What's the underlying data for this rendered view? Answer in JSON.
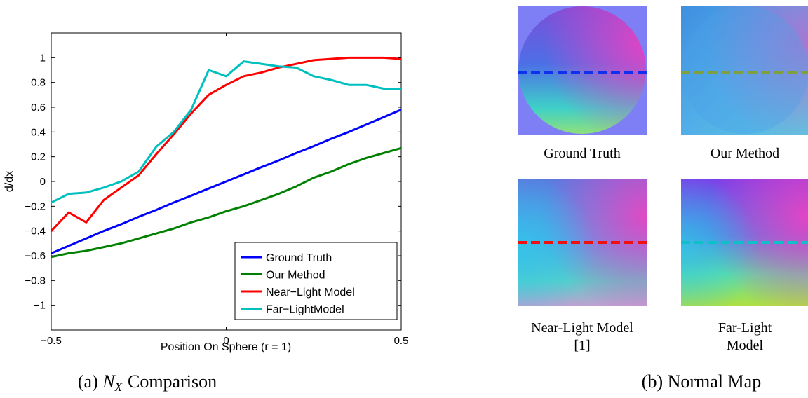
{
  "chart_data": {
    "type": "line",
    "xlabel": "Position On Sphere (r = 1)",
    "ylabel": "d/dx",
    "x": [
      -0.5,
      -0.45,
      -0.4,
      -0.35,
      -0.3,
      -0.25,
      -0.2,
      -0.15,
      -0.1,
      -0.05,
      0,
      0.05,
      0.1,
      0.15,
      0.2,
      0.25,
      0.3,
      0.35,
      0.4,
      0.45,
      0.5
    ],
    "series": [
      {
        "name": "Ground Truth",
        "color": "#0000ff",
        "values": [
          -0.58,
          -0.52,
          -0.46,
          -0.4,
          -0.345,
          -0.285,
          -0.23,
          -0.17,
          -0.115,
          -0.057,
          0,
          0.057,
          0.115,
          0.17,
          0.23,
          0.285,
          0.345,
          0.4,
          0.46,
          0.52,
          0.58
        ]
      },
      {
        "name": "Our Method",
        "color": "#008000",
        "values": [
          -0.61,
          -0.58,
          -0.56,
          -0.53,
          -0.5,
          -0.46,
          -0.42,
          -0.38,
          -0.33,
          -0.29,
          -0.24,
          -0.2,
          -0.15,
          -0.1,
          -0.04,
          0.03,
          0.08,
          0.14,
          0.19,
          0.23,
          0.27
        ]
      },
      {
        "name": "Near−Light Model",
        "color": "#ff0000",
        "values": [
          -0.4,
          -0.25,
          -0.33,
          -0.15,
          -0.05,
          0.05,
          0.22,
          0.38,
          0.55,
          0.7,
          0.78,
          0.85,
          0.88,
          0.92,
          0.95,
          0.98,
          0.99,
          1.0,
          1.0,
          1.0,
          0.99
        ]
      },
      {
        "name": "Far−LightModel",
        "color": "#00bfbf",
        "values": [
          -0.17,
          -0.1,
          -0.09,
          -0.05,
          0.0,
          0.08,
          0.28,
          0.4,
          0.58,
          0.9,
          0.85,
          0.97,
          0.95,
          0.93,
          0.92,
          0.85,
          0.82,
          0.78,
          0.78,
          0.75,
          0.75
        ]
      }
    ],
    "xlim": [
      -0.5,
      0.5
    ],
    "xticks": [
      {
        "value": -0.5,
        "label": "−0.5"
      },
      0,
      0.5
    ],
    "ylim": [
      -1.2,
      1.2
    ],
    "yticks": [
      {
        "value": -1,
        "label": "−1"
      },
      {
        "value": -0.8,
        "label": "−0.8"
      },
      {
        "value": -0.6,
        "label": "−0.6"
      },
      {
        "value": -0.4,
        "label": "−0.4"
      },
      {
        "value": -0.2,
        "label": "−0.2"
      },
      0,
      0.2,
      0.4,
      0.6,
      0.8,
      1
    ],
    "grid": false,
    "legend": "lower right"
  },
  "captions": [
    {
      "prefix": "(a)",
      "symbol": "N",
      "subscript": "X",
      "rest": "Comparison"
    },
    {
      "prefix": "(b)",
      "rest": "Normal Map"
    }
  ],
  "panels": [
    {
      "label_lines": [
        "Ground Truth"
      ]
    },
    {
      "label_lines": [
        "Our Method"
      ]
    },
    {
      "label_lines": [
        "Near-Light Model",
        "[1]"
      ]
    },
    {
      "label_lines": [
        "Far-Light",
        "Model"
      ]
    }
  ]
}
